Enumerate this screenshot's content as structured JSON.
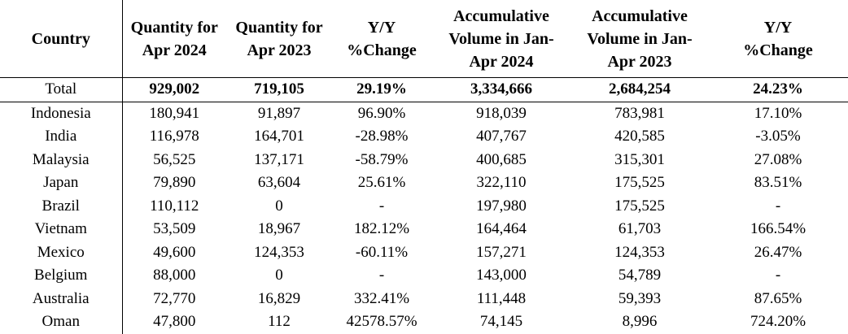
{
  "headers": [
    "Country",
    "Quantity for\nApr 2024",
    "Quantity for\nApr 2023",
    "Y/Y\n%Change",
    "Accumulative\nVolume in Jan-\nApr 2024",
    "Accumulative\nVolume in Jan-\nApr 2023",
    "Y/Y\n%Change"
  ],
  "total": [
    "Total",
    "929,002",
    "719,105",
    "29.19%",
    "3,334,666",
    "2,684,254",
    "24.23%"
  ],
  "rows": [
    [
      "Indonesia",
      "180,941",
      "91,897",
      "96.90%",
      "918,039",
      "783,981",
      "17.10%"
    ],
    [
      "India",
      "116,978",
      "164,701",
      "-28.98%",
      "407,767",
      "420,585",
      "-3.05%"
    ],
    [
      "Malaysia",
      "56,525",
      "137,171",
      "-58.79%",
      "400,685",
      "315,301",
      "27.08%"
    ],
    [
      "Japan",
      "79,890",
      "63,604",
      "25.61%",
      "322,110",
      "175,525",
      "83.51%"
    ],
    [
      "Brazil",
      "110,112",
      "0",
      "-",
      "197,980",
      "175,525",
      "-"
    ],
    [
      "Vietnam",
      "53,509",
      "18,967",
      "182.12%",
      "164,464",
      "61,703",
      "166.54%"
    ],
    [
      "Mexico",
      "49,600",
      "124,353",
      "-60.11%",
      "157,271",
      "124,353",
      "26.47%"
    ],
    [
      "Belgium",
      "88,000",
      "0",
      "-",
      "143,000",
      "54,789",
      "-"
    ],
    [
      "Australia",
      "72,770",
      "16,829",
      "332.41%",
      "111,448",
      "59,393",
      "87.65%"
    ],
    [
      "Oman",
      "47,800",
      "112",
      "42578.57%",
      "74,145",
      "8,996",
      "724.20%"
    ]
  ]
}
